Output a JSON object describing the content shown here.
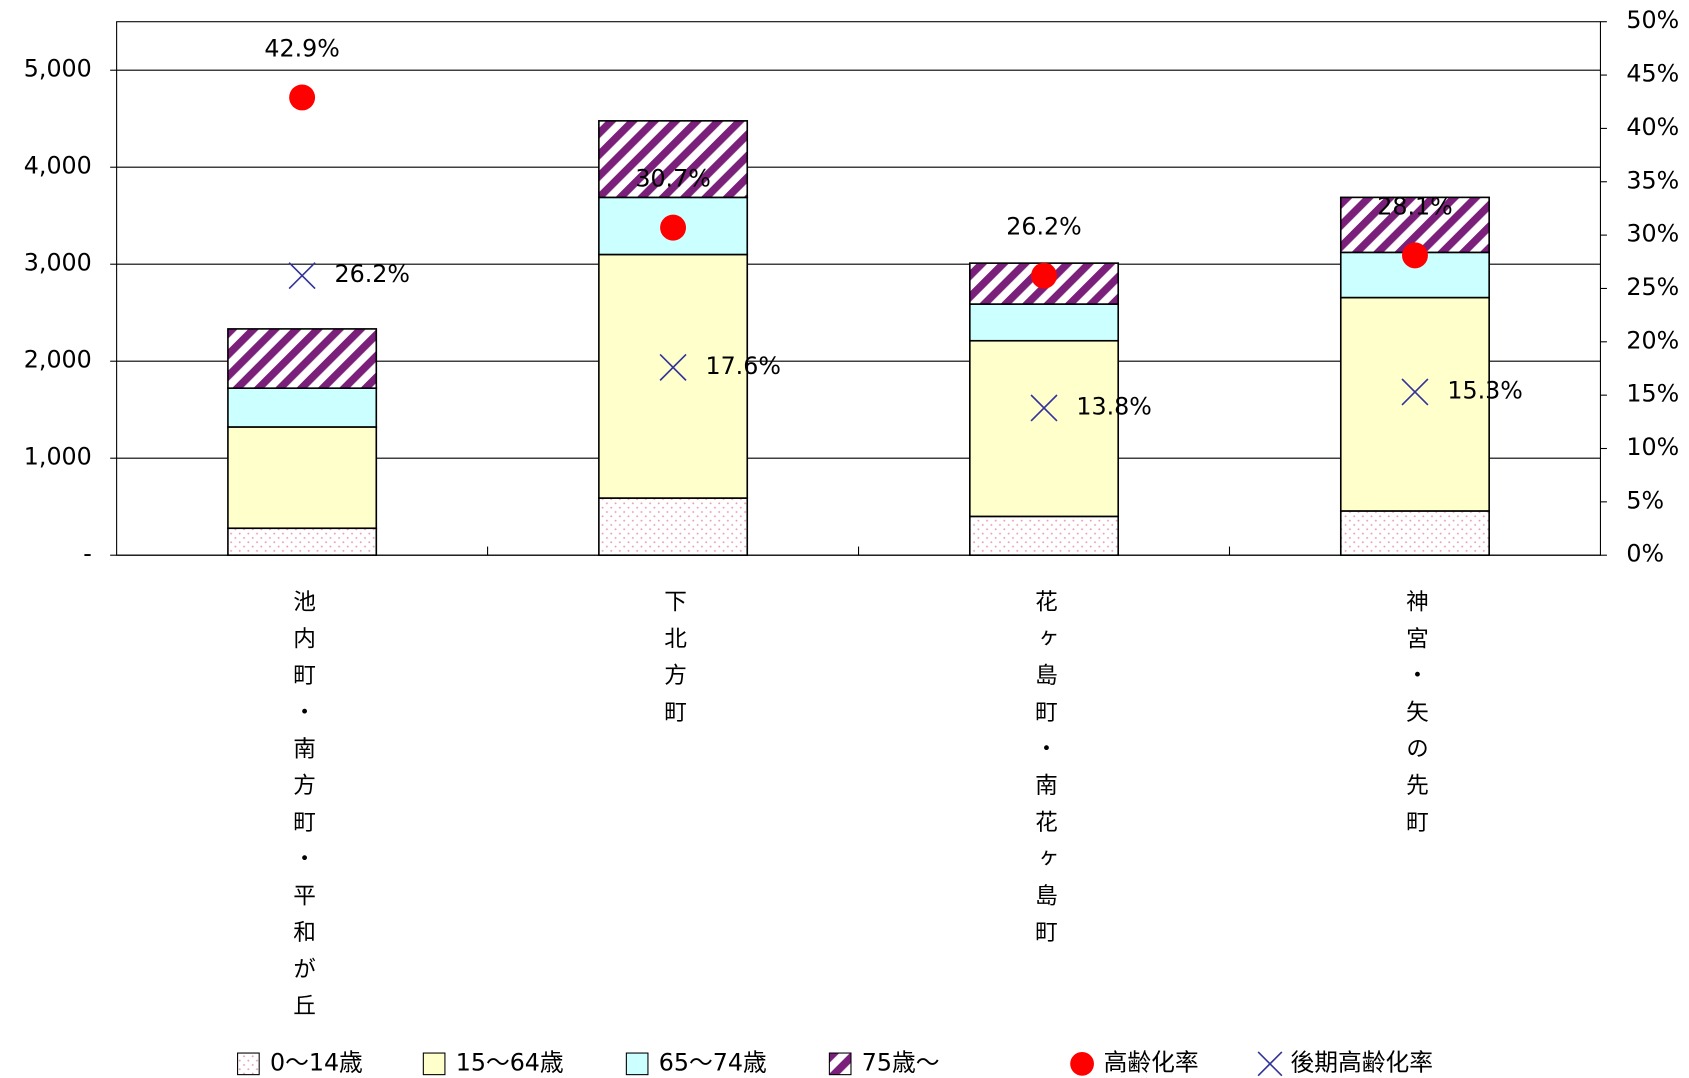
{
  "chart_data": {
    "type": "bar",
    "stacked": true,
    "categories": [
      "池内町・南方町・平和が丘",
      "下北方町",
      "花ヶ島町・南花ヶ島町",
      "神宮・矢の先町"
    ],
    "series": [
      {
        "name": "0〜14歳",
        "color": "#e8a0b4",
        "pattern": "dots",
        "values": [
          278,
          589,
          400,
          456
        ]
      },
      {
        "name": "15〜64歳",
        "color": "#ffffcc",
        "values": [
          1044,
          2511,
          1811,
          2200
        ]
      },
      {
        "name": "65〜74歳",
        "color": "#ccffff",
        "values": [
          400,
          589,
          378,
          466
        ]
      },
      {
        "name": "75歳〜",
        "color": "#7a1f7a",
        "pattern": "hatch",
        "values": [
          611,
          789,
          422,
          567
        ]
      },
      {
        "name": "高齢化率",
        "color": "#ff0000",
        "marker": "circle",
        "axis": "y2",
        "values": [
          42.9,
          30.7,
          26.2,
          28.1
        ],
        "value_labels": [
          "42.9%",
          "30.7%",
          "26.2%",
          "28.1%"
        ]
      },
      {
        "name": "後期高齢化率",
        "color": "#333399",
        "marker": "x",
        "axis": "y2",
        "values": [
          26.2,
          17.6,
          13.8,
          15.3
        ],
        "value_labels": [
          "26.2%",
          "17.6%",
          "13.8%",
          "15.3%"
        ]
      }
    ],
    "ylim": [
      0,
      5500
    ],
    "yticks": [
      {
        "value": 0,
        "label": "-"
      },
      {
        "value": 1000,
        "label": "1,000"
      },
      {
        "value": 2000,
        "label": "2,000"
      },
      {
        "value": 3000,
        "label": "3,000"
      },
      {
        "value": 4000,
        "label": "4,000"
      },
      {
        "value": 5000,
        "label": "5,000"
      }
    ],
    "y2lim": [
      0,
      50
    ],
    "y2ticks": [
      {
        "value": 0,
        "label": "0%"
      },
      {
        "value": 5,
        "label": "5%"
      },
      {
        "value": 10,
        "label": "10%"
      },
      {
        "value": 15,
        "label": "15%"
      },
      {
        "value": 20,
        "label": "20%"
      },
      {
        "value": 25,
        "label": "25%"
      },
      {
        "value": 30,
        "label": "30%"
      },
      {
        "value": 35,
        "label": "35%"
      },
      {
        "value": 40,
        "label": "40%"
      },
      {
        "value": 45,
        "label": "45%"
      },
      {
        "value": 50,
        "label": "50%"
      }
    ],
    "grid": true
  }
}
